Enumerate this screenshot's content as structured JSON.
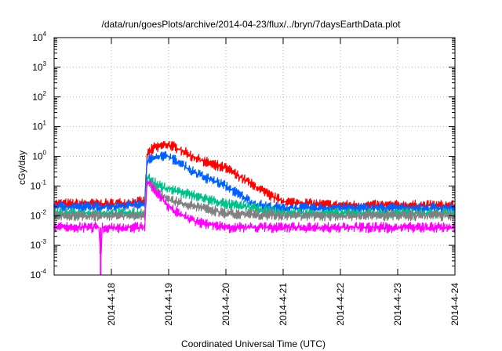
{
  "chart_data": {
    "type": "line",
    "title": "/data/run/goesPlots/archive/2014-04-23/flux/../bryn/7daysEarthData.plot",
    "xlabel": "Coordinated Universal Time (UTC)",
    "ylabel": "cGy/day",
    "xlim": [
      "2014-04-17 00:00",
      "2014-04-24 00:00"
    ],
    "ylim": [
      0.0001,
      10000
    ],
    "y_scale": "log",
    "grid": true,
    "legend": "none",
    "x_ticks": [
      "2014-4-18",
      "2014-4-19",
      "2014-4-20",
      "2014-4-21",
      "2014-4-22",
      "2014-4-23",
      "2014-4-24"
    ],
    "y_ticks": [
      {
        "value": 0.0001,
        "base": "10",
        "exp": "-4"
      },
      {
        "value": 0.001,
        "base": "10",
        "exp": "-3"
      },
      {
        "value": 0.01,
        "base": "10",
        "exp": "-2"
      },
      {
        "value": 0.1,
        "base": "10",
        "exp": "-1"
      },
      {
        "value": 1,
        "base": "10",
        "exp": "0"
      },
      {
        "value": 10,
        "base": "10",
        "exp": "1"
      },
      {
        "value": 100,
        "base": "10",
        "exp": "2"
      },
      {
        "value": 1000,
        "base": "10",
        "exp": "3"
      },
      {
        "value": 10000,
        "base": "10",
        "exp": "4"
      }
    ],
    "series": [
      {
        "color": "#ff0000",
        "x": [
          "2014-04-17 00:00",
          "2014-04-18 00:00",
          "2014-04-18 14:00",
          "2014-04-18 15:00",
          "2014-04-18 18:00",
          "2014-04-19 00:00",
          "2014-04-19 06:00",
          "2014-04-19 12:00",
          "2014-04-20 00:00",
          "2014-04-20 06:00",
          "2014-04-20 12:00",
          "2014-04-20 18:00",
          "2014-04-21 00:00",
          "2014-04-21 12:00",
          "2014-04-22 00:00",
          "2014-04-23 00:00",
          "2014-04-24 00:00"
        ],
        "y": [
          0.025,
          0.025,
          0.03,
          1.2,
          2.0,
          2.5,
          1.5,
          0.8,
          0.4,
          0.2,
          0.1,
          0.05,
          0.03,
          0.025,
          0.022,
          0.022,
          0.022
        ]
      },
      {
        "color": "#0060ff",
        "x": [
          "2014-04-17 00:00",
          "2014-04-18 00:00",
          "2014-04-18 14:00",
          "2014-04-18 15:00",
          "2014-04-18 18:00",
          "2014-04-19 00:00",
          "2014-04-19 06:00",
          "2014-04-19 12:00",
          "2014-04-20 00:00",
          "2014-04-20 06:00",
          "2014-04-20 12:00",
          "2014-04-20 18:00",
          "2014-04-21 00:00",
          "2014-04-21 12:00",
          "2014-04-22 00:00",
          "2014-04-23 00:00",
          "2014-04-24 00:00"
        ],
        "y": [
          0.02,
          0.02,
          0.025,
          0.7,
          1.0,
          1.0,
          0.5,
          0.25,
          0.1,
          0.05,
          0.025,
          0.02,
          0.018,
          0.018,
          0.018,
          0.018,
          0.018
        ]
      },
      {
        "color": "#00c08a",
        "x": [
          "2014-04-17 00:00",
          "2014-04-18 00:00",
          "2014-04-18 14:00",
          "2014-04-18 15:00",
          "2014-04-18 20:00",
          "2014-04-19 00:00",
          "2014-04-19 12:00",
          "2014-04-20 00:00",
          "2014-04-20 12:00",
          "2014-04-21 00:00",
          "2014-04-22 00:00",
          "2014-04-23 00:00",
          "2014-04-24 00:00"
        ],
        "y": [
          0.012,
          0.012,
          0.012,
          0.2,
          0.1,
          0.08,
          0.045,
          0.025,
          0.018,
          0.012,
          0.012,
          0.012,
          0.012
        ]
      },
      {
        "color": "#808080",
        "x": [
          "2014-04-17 00:00",
          "2014-04-18 00:00",
          "2014-04-18 14:00",
          "2014-04-18 15:00",
          "2014-04-18 20:00",
          "2014-04-19 00:00",
          "2014-04-19 12:00",
          "2014-04-20 00:00",
          "2014-04-21 00:00",
          "2014-04-22 00:00",
          "2014-04-23 00:00",
          "2014-04-24 00:00"
        ],
        "y": [
          0.01,
          0.01,
          0.01,
          0.15,
          0.06,
          0.035,
          0.02,
          0.012,
          0.01,
          0.01,
          0.01,
          0.01
        ]
      },
      {
        "color": "#ff00ff",
        "x": [
          "2014-04-17 00:00",
          "2014-04-17 19:00",
          "2014-04-17 19:30",
          "2014-04-17 20:00",
          "2014-04-18 00:00",
          "2014-04-18 14:00",
          "2014-04-18 15:00",
          "2014-04-18 20:00",
          "2014-04-19 00:00",
          "2014-04-19 06:00",
          "2014-04-19 12:00",
          "2014-04-20 00:00",
          "2014-04-21 00:00",
          "2014-04-22 00:00",
          "2014-04-23 00:00",
          "2014-04-24 00:00"
        ],
        "y": [
          0.004,
          0.004,
          0.0001,
          0.004,
          0.004,
          0.004,
          0.15,
          0.05,
          0.02,
          0.01,
          0.006,
          0.004,
          0.004,
          0.004,
          0.004,
          0.004
        ]
      }
    ]
  }
}
